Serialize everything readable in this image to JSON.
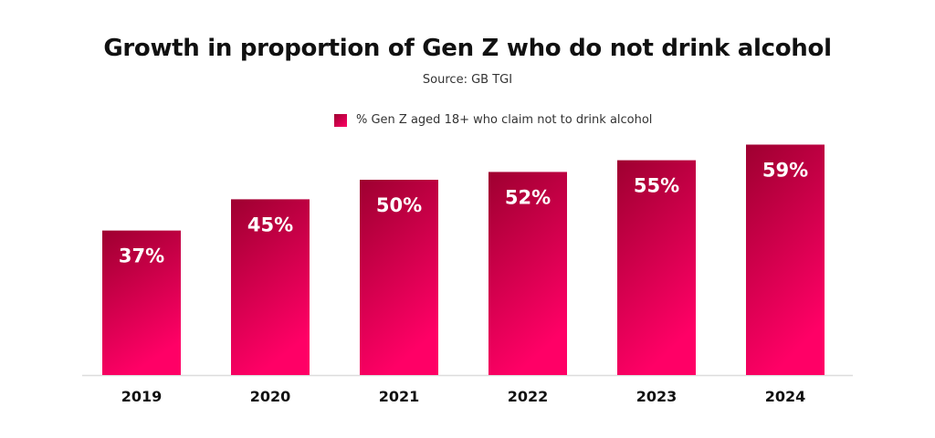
{
  "chart_data": {
    "type": "bar",
    "title": "Growth in proportion of Gen Z who do not drink alcohol",
    "subtitle": "Source: GB TGI",
    "categories": [
      "2019",
      "2020",
      "2021",
      "2022",
      "2023",
      "2024"
    ],
    "series": [
      {
        "name": "% Gen Z aged 18+ who claim not to drink alcohol",
        "values": [
          37,
          45,
          50,
          52,
          55,
          59
        ]
      }
    ],
    "value_labels": [
      "37%",
      "45%",
      "50%",
      "52%",
      "55%",
      "59%"
    ],
    "ylim": [
      0,
      100
    ],
    "grid": false,
    "legend_position": "top",
    "colors": {
      "bar_top": "#9e0030",
      "bar_bottom": "#ff0066",
      "axis": "#dddddd"
    }
  }
}
